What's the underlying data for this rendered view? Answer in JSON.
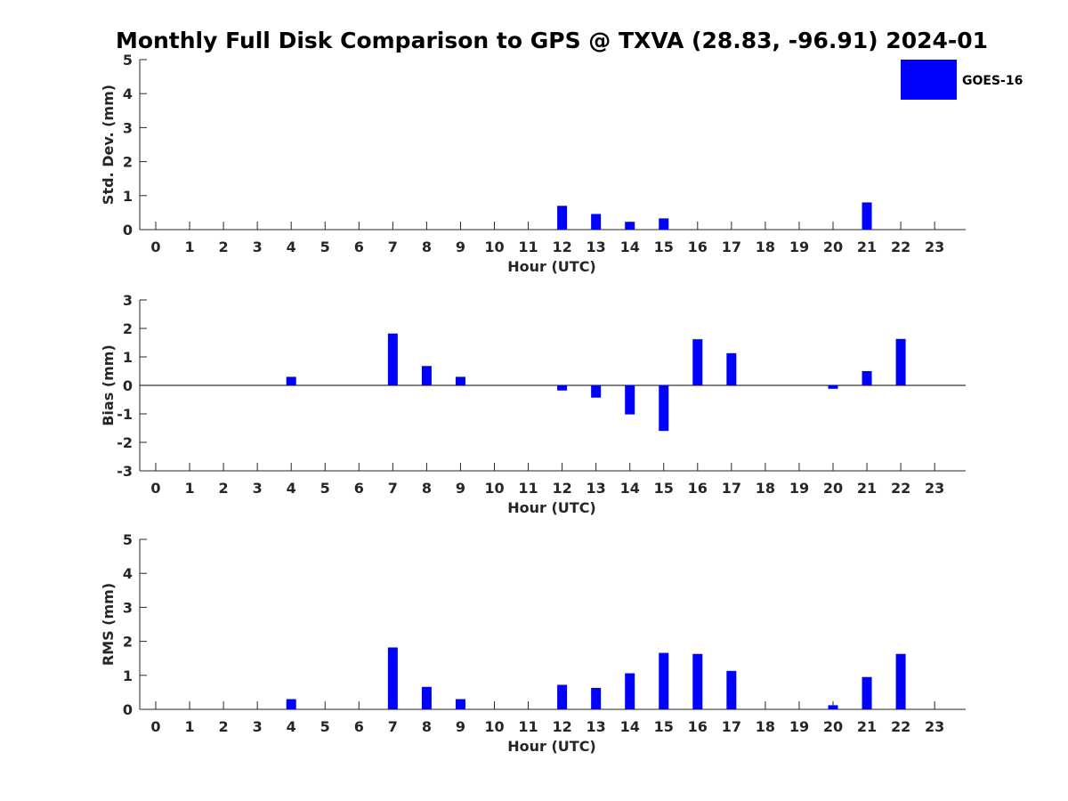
{
  "title": "Monthly Full Disk Comparison to GPS @ TXVA (28.83, -96.91) 2024-01",
  "legend": {
    "label": "GOES-16",
    "color": "#0000ff",
    "placement": "top-right"
  },
  "chart_data": [
    {
      "type": "bar",
      "ylabel": "Std. Dev. (mm)",
      "xlabel": "Hour (UTC)",
      "ylim": [
        0,
        5
      ],
      "yticks": [
        "0",
        "1",
        "2",
        "3",
        "4",
        "5"
      ],
      "categories": [
        "0",
        "1",
        "2",
        "3",
        "4",
        "5",
        "6",
        "7",
        "8",
        "9",
        "10",
        "11",
        "12",
        "13",
        "14",
        "15",
        "16",
        "17",
        "18",
        "19",
        "20",
        "21",
        "22",
        "23"
      ],
      "series": [
        {
          "name": "GOES-16",
          "color": "#0000ff",
          "values": [
            null,
            null,
            null,
            null,
            null,
            null,
            null,
            null,
            null,
            null,
            null,
            null,
            0.7,
            0.46,
            0.23,
            0.33,
            null,
            null,
            null,
            null,
            null,
            0.8,
            null,
            null
          ]
        }
      ]
    },
    {
      "type": "bar",
      "ylabel": "Bias (mm)",
      "xlabel": "Hour (UTC)",
      "ylim": [
        -3,
        3
      ],
      "yticks": [
        "-3",
        "-2",
        "-1",
        "0",
        "1",
        "2",
        "3"
      ],
      "zero_line": true,
      "categories": [
        "0",
        "1",
        "2",
        "3",
        "4",
        "5",
        "6",
        "7",
        "8",
        "9",
        "10",
        "11",
        "12",
        "13",
        "14",
        "15",
        "16",
        "17",
        "18",
        "19",
        "20",
        "21",
        "22",
        "23"
      ],
      "series": [
        {
          "name": "GOES-16",
          "color": "#0000ff",
          "values": [
            null,
            null,
            null,
            null,
            0.3,
            null,
            null,
            1.82,
            0.68,
            0.3,
            null,
            null,
            -0.18,
            -0.43,
            -1.02,
            -1.6,
            1.62,
            1.13,
            null,
            null,
            -0.12,
            0.5,
            1.63,
            null
          ]
        }
      ]
    },
    {
      "type": "bar",
      "ylabel": "RMS (mm)",
      "xlabel": "Hour (UTC)",
      "ylim": [
        0,
        5
      ],
      "yticks": [
        "0",
        "1",
        "2",
        "3",
        "4",
        "5"
      ],
      "categories": [
        "0",
        "1",
        "2",
        "3",
        "4",
        "5",
        "6",
        "7",
        "8",
        "9",
        "10",
        "11",
        "12",
        "13",
        "14",
        "15",
        "16",
        "17",
        "18",
        "19",
        "20",
        "21",
        "22",
        "23"
      ],
      "series": [
        {
          "name": "GOES-16",
          "color": "#0000ff",
          "values": [
            null,
            null,
            null,
            null,
            0.3,
            null,
            null,
            1.82,
            0.66,
            0.3,
            null,
            null,
            0.72,
            0.63,
            1.06,
            1.66,
            1.63,
            1.13,
            null,
            null,
            0.12,
            0.95,
            1.63,
            null
          ]
        }
      ]
    }
  ]
}
